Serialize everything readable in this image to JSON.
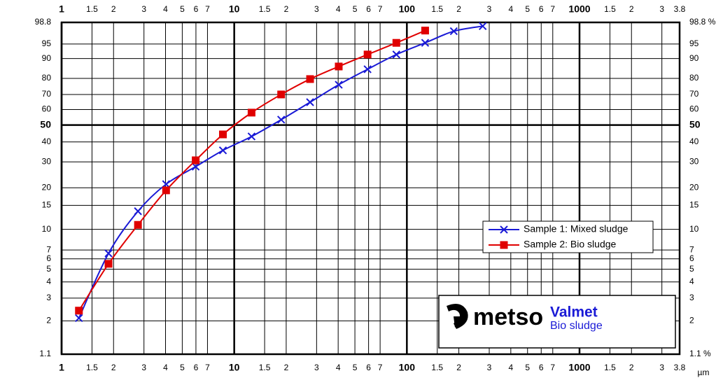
{
  "chart_data": {
    "type": "line",
    "xscale": "log",
    "yscale": "rrsb",
    "x_unit": "µm",
    "xlim": [
      1,
      3800
    ],
    "xticks": [
      1,
      1.5,
      2,
      3,
      4,
      5,
      6,
      7,
      10,
      {
        "value": 15,
        "label": "1.5"
      },
      {
        "value": 20,
        "label": "2"
      },
      {
        "value": 30,
        "label": "3"
      },
      {
        "value": 40,
        "label": "4"
      },
      {
        "value": 50,
        "label": "5"
      },
      {
        "value": 60,
        "label": "6"
      },
      {
        "value": 70,
        "label": "7"
      },
      100,
      {
        "value": 150,
        "label": "1.5"
      },
      {
        "value": 200,
        "label": "2"
      },
      {
        "value": 300,
        "label": "3"
      },
      {
        "value": 400,
        "label": "4"
      },
      {
        "value": 500,
        "label": "5"
      },
      {
        "value": 600,
        "label": "6"
      },
      {
        "value": 700,
        "label": "7"
      },
      1000,
      {
        "value": 1500,
        "label": "1.5"
      },
      {
        "value": 2000,
        "label": "2"
      },
      {
        "value": 3000,
        "label": "3"
      },
      {
        "value": 3800,
        "label": "3.8"
      }
    ],
    "major_xticks": [
      1,
      10,
      100,
      1000
    ],
    "ylim": [
      1.1,
      98.8
    ],
    "yticks": [
      98.8,
      95,
      90,
      80,
      70,
      60,
      50,
      40,
      30,
      20,
      15,
      10,
      7,
      6,
      5,
      4,
      3,
      2,
      1.1
    ],
    "major_ytick": 50,
    "y2lim": [
      1.1,
      98.8
    ],
    "y2ticks": [
      {
        "value": 98.8,
        "label": "98.8 %"
      },
      95,
      90,
      80,
      70,
      60,
      50,
      40,
      30,
      20,
      15,
      10,
      7,
      6,
      5,
      4,
      3,
      2,
      {
        "value": 1.1,
        "label": "1.1 %"
      }
    ],
    "grid": true,
    "legend": "center right",
    "x": [
      1.26,
      1.87,
      2.77,
      4.03,
      5.98,
      8.6,
      12.6,
      18.7,
      27.5,
      40.3,
      59.2,
      86.9,
      127.6,
      187,
      275
    ],
    "series": [
      {
        "name": "Sample 1: Mixed sludge",
        "color": "#1a1ad6",
        "marker": "x",
        "values": [
          2.1,
          6.6,
          13.6,
          21.2,
          27.9,
          35.5,
          43.1,
          53.4,
          64.9,
          76.2,
          85.0,
          91.6,
          95.3,
          97.7,
          98.4
        ]
      },
      {
        "name": "Sample 2: Bio sludge",
        "color": "#e00000",
        "marker": "square",
        "values": [
          2.4,
          5.5,
          10.8,
          19.2,
          30.7,
          44.3,
          58.0,
          70.0,
          79.6,
          86.4,
          91.6,
          95.3,
          97.8,
          null,
          null
        ]
      }
    ],
    "logo_text": "metso",
    "brand": "Valmet",
    "subtitle": "Bio sludge"
  }
}
